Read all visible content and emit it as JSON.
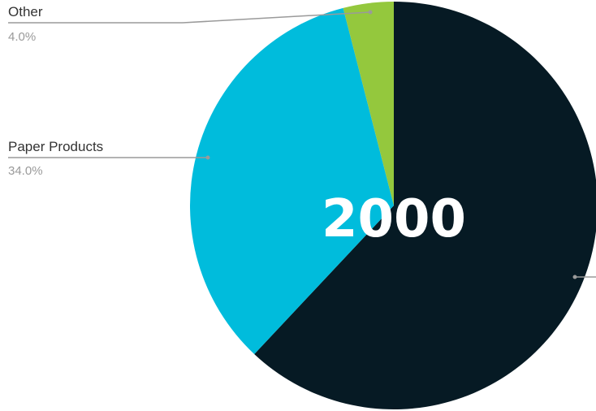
{
  "chart_data": {
    "type": "pie",
    "title": "2000",
    "start_angle": "12 o'clock, clockwise",
    "slices": [
      {
        "label": "",
        "value": 62.0,
        "percent_label": "",
        "color": "#061a24"
      },
      {
        "label": "Paper Products",
        "value": 34.0,
        "percent_label": "34.0%",
        "color": "#00bcdc"
      },
      {
        "label": "Other",
        "value": 4.0,
        "percent_label": "4.0%",
        "color": "#94c83d"
      }
    ]
  }
}
